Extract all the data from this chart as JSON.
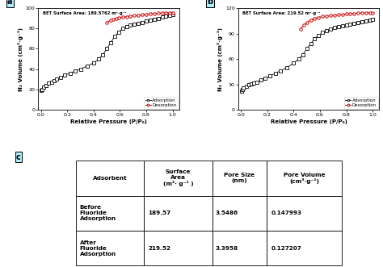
{
  "plot_a": {
    "label": "a",
    "bet_text": "BET Surface Area: 189.5762 m²·g⁻¹",
    "ylabel": "N₂ Volume (cm³·g⁻¹)",
    "xlabel": "Relative Pressure (P/P₀)",
    "ylim": [
      0,
      100
    ],
    "xlim": [
      -0.02,
      1.05
    ],
    "yticks": [
      0,
      20,
      40,
      60,
      80,
      100
    ],
    "xticks": [
      0.0,
      0.2,
      0.4,
      0.6,
      0.8,
      1.0
    ],
    "adsorption_x": [
      0.005,
      0.01,
      0.02,
      0.04,
      0.06,
      0.08,
      0.1,
      0.12,
      0.15,
      0.18,
      0.22,
      0.26,
      0.3,
      0.35,
      0.4,
      0.44,
      0.47,
      0.5,
      0.53,
      0.56,
      0.59,
      0.62,
      0.65,
      0.68,
      0.71,
      0.74,
      0.77,
      0.8,
      0.83,
      0.86,
      0.89,
      0.92,
      0.95,
      0.98,
      1.0
    ],
    "adsorption_y": [
      19,
      20,
      22,
      24,
      26,
      27,
      28.5,
      30,
      32,
      34,
      36,
      38,
      40,
      43,
      46,
      50,
      54,
      60,
      66,
      72,
      76,
      80,
      82,
      83,
      84,
      85,
      86,
      87,
      88,
      89,
      90,
      91,
      92,
      93,
      94
    ],
    "desorption_x": [
      0.5,
      0.53,
      0.55,
      0.57,
      0.59,
      0.62,
      0.65,
      0.68,
      0.71,
      0.74,
      0.77,
      0.8,
      0.83,
      0.86,
      0.89,
      0.92,
      0.95,
      0.98,
      1.0
    ],
    "desorption_y": [
      86,
      88,
      89,
      90,
      90.5,
      91,
      91.5,
      92,
      92.5,
      93,
      93.5,
      94,
      94.3,
      94.5,
      94.8,
      95,
      95.2,
      95.5,
      95.5
    ]
  },
  "plot_b": {
    "label": "b",
    "bet_text": "BET Surface Area: 219.52 m²·g⁻¹",
    "ylabel": "N₂ Volume (cm³·g⁻¹)",
    "xlabel": "Relative Pressure (P/P₀)",
    "ylim": [
      0,
      120
    ],
    "xlim": [
      -0.02,
      1.05
    ],
    "yticks": [
      0,
      30,
      60,
      90,
      120
    ],
    "xticks": [
      0.0,
      0.2,
      0.4,
      0.6,
      0.8,
      1.0
    ],
    "adsorption_x": [
      0.005,
      0.01,
      0.02,
      0.04,
      0.06,
      0.08,
      0.1,
      0.12,
      0.15,
      0.18,
      0.22,
      0.26,
      0.3,
      0.35,
      0.4,
      0.44,
      0.47,
      0.5,
      0.53,
      0.56,
      0.59,
      0.62,
      0.65,
      0.68,
      0.71,
      0.74,
      0.77,
      0.8,
      0.83,
      0.86,
      0.89,
      0.92,
      0.95,
      0.98,
      1.0
    ],
    "adsorption_y": [
      22,
      24,
      26,
      28,
      30,
      31,
      32,
      33,
      35,
      37,
      40,
      43,
      46,
      50,
      55,
      60,
      65,
      72,
      78,
      84,
      88,
      91,
      93,
      95,
      97,
      98,
      99,
      100,
      101,
      102,
      103,
      104,
      105,
      106,
      107
    ],
    "desorption_x": [
      0.45,
      0.48,
      0.5,
      0.53,
      0.56,
      0.59,
      0.62,
      0.65,
      0.68,
      0.71,
      0.74,
      0.77,
      0.8,
      0.83,
      0.86,
      0.89,
      0.92,
      0.95,
      0.98,
      1.0
    ],
    "desorption_y": [
      95,
      100,
      103,
      106,
      108,
      109,
      110,
      110.5,
      111,
      111.5,
      112,
      112.5,
      113,
      113.3,
      113.5,
      113.8,
      114,
      114.2,
      114.5,
      114.5
    ]
  },
  "table": {
    "label": "c",
    "col_headers": [
      "Adsorbent",
      "Surface\nArea\n(m²· g⁻¹ )",
      "Pore Size\n(nm)",
      "Pore Volume\n(cm³·g⁻¹)"
    ],
    "rows": [
      [
        "Before\nFluoride\nAdsorption",
        "189.57",
        "3.5486",
        "0.147993"
      ],
      [
        "After\nFluoride\nAdsorption",
        "219.52",
        "3.3958",
        "0.127207"
      ]
    ]
  },
  "label_bg_color": "#aaeeff",
  "adsorption_color": "#222222",
  "desorption_color": "#cc0000",
  "fig_width": 4.74,
  "fig_height": 3.31,
  "dpi": 100
}
